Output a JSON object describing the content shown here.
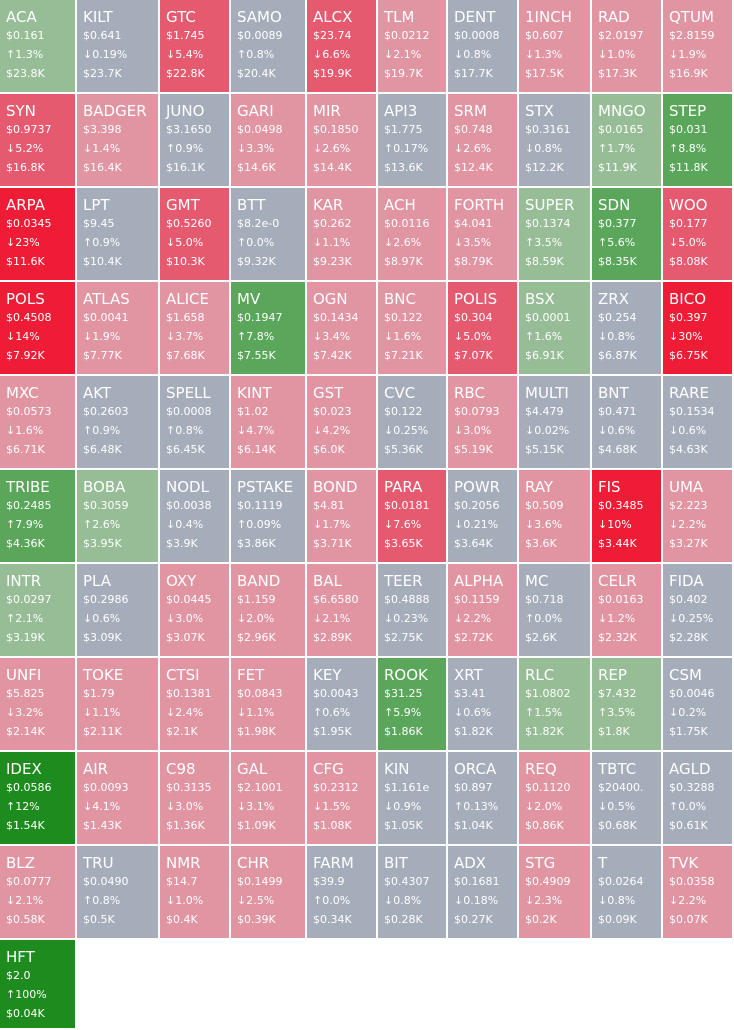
{
  "colors": {
    "up_strong": "#1e8b1e",
    "up_medium": "#5aa65a",
    "up_light": "#96bd96",
    "neutral": "#a5adbb",
    "down_light": "#e194a2",
    "down_medium": "#e65a70",
    "down_strong": "#ef1c36"
  },
  "tiles": [
    {
      "symbol": "ACA",
      "price": "$0.161",
      "change": "↑1.3%",
      "volume": "$23.8K",
      "color": "#96bd96"
    },
    {
      "symbol": "KILT",
      "price": "$0.641",
      "change": "↓0.19%",
      "volume": "$23.7K",
      "color": "#a5adbb"
    },
    {
      "symbol": "GTC",
      "price": "$1.745",
      "change": "↓5.4%",
      "volume": "$22.8K",
      "color": "#e65a70"
    },
    {
      "symbol": "SAMO",
      "price": "$0.0089",
      "change": "↑0.8%",
      "volume": "$20.4K",
      "color": "#a5adbb"
    },
    {
      "symbol": "ALCX",
      "price": "$23.74",
      "change": "↓6.6%",
      "volume": "$19.9K",
      "color": "#e65a70"
    },
    {
      "symbol": "TLM",
      "price": "$0.0212",
      "change": "↓2.1%",
      "volume": "$19.7K",
      "color": "#e194a2"
    },
    {
      "symbol": "DENT",
      "price": "$0.0008",
      "change": "↓0.8%",
      "volume": "$17.7K",
      "color": "#a5adbb"
    },
    {
      "symbol": "1INCH",
      "price": "$0.607",
      "change": "↓1.3%",
      "volume": "$17.5K",
      "color": "#e194a2"
    },
    {
      "symbol": "RAD",
      "price": "$2.0197",
      "change": "↓1.0%",
      "volume": "$17.3K",
      "color": "#e194a2"
    },
    {
      "symbol": "QTUM",
      "price": "$2.8159",
      "change": "↓1.9%",
      "volume": "$16.9K",
      "color": "#e194a2"
    },
    {
      "symbol": "SYN",
      "price": "$0.9737",
      "change": "↓5.2%",
      "volume": "$16.8K",
      "color": "#e65a70"
    },
    {
      "symbol": "BADGER",
      "price": "$3.398",
      "change": "↓1.4%",
      "volume": "$16.4K",
      "color": "#e194a2"
    },
    {
      "symbol": "JUNO",
      "price": "$3.1650",
      "change": "↑0.9%",
      "volume": "$16.1K",
      "color": "#a5adbb"
    },
    {
      "symbol": "GARI",
      "price": "$0.0498",
      "change": "↓3.3%",
      "volume": "$14.6K",
      "color": "#e194a2"
    },
    {
      "symbol": "MIR",
      "price": "$0.1850",
      "change": "↓2.6%",
      "volume": "$14.4K",
      "color": "#e194a2"
    },
    {
      "symbol": "API3",
      "price": "$1.775",
      "change": "↑0.17%",
      "volume": "$13.6K",
      "color": "#a5adbb"
    },
    {
      "symbol": "SRM",
      "price": "$0.748",
      "change": "↓2.6%",
      "volume": "$12.4K",
      "color": "#e194a2"
    },
    {
      "symbol": "STX",
      "price": "$0.3161",
      "change": "↓0.8%",
      "volume": "$12.2K",
      "color": "#a5adbb"
    },
    {
      "symbol": "MNGO",
      "price": "$0.0165",
      "change": "↑1.7%",
      "volume": "$11.9K",
      "color": "#96bd96"
    },
    {
      "symbol": "STEP",
      "price": "$0.031",
      "change": "↑8.8%",
      "volume": "$11.8K",
      "color": "#5aa65a"
    },
    {
      "symbol": "ARPA",
      "price": "$0.0345",
      "change": "↓23%",
      "volume": "$11.6K",
      "color": "#ef1c36"
    },
    {
      "symbol": "LPT",
      "price": "$9.45",
      "change": "↑0.9%",
      "volume": "$10.4K",
      "color": "#a5adbb"
    },
    {
      "symbol": "GMT",
      "price": "$0.5260",
      "change": "↓5.0%",
      "volume": "$10.3K",
      "color": "#e65a70"
    },
    {
      "symbol": "BTT",
      "price": "$8.2e-0",
      "change": "↑0.0%",
      "volume": "$9.32K",
      "color": "#a5adbb"
    },
    {
      "symbol": "KAR",
      "price": "$0.262",
      "change": "↓1.1%",
      "volume": "$9.23K",
      "color": "#e194a2"
    },
    {
      "symbol": "ACH",
      "price": "$0.0116",
      "change": "↓2.6%",
      "volume": "$8.97K",
      "color": "#e194a2"
    },
    {
      "symbol": "FORTH",
      "price": "$4.041",
      "change": "↓3.5%",
      "volume": "$8.79K",
      "color": "#e194a2"
    },
    {
      "symbol": "SUPER",
      "price": "$0.1374",
      "change": "↑3.5%",
      "volume": "$8.59K",
      "color": "#96bd96"
    },
    {
      "symbol": "SDN",
      "price": "$0.377",
      "change": "↑5.6%",
      "volume": "$8.35K",
      "color": "#5aa65a"
    },
    {
      "symbol": "WOO",
      "price": "$0.177",
      "change": "↓5.0%",
      "volume": "$8.08K",
      "color": "#e65a70"
    },
    {
      "symbol": "POLS",
      "price": "$0.4508",
      "change": "↓14%",
      "volume": "$7.92K",
      "color": "#ef1c36"
    },
    {
      "symbol": "ATLAS",
      "price": "$0.0041",
      "change": "↓1.9%",
      "volume": "$7.77K",
      "color": "#e194a2"
    },
    {
      "symbol": "ALICE",
      "price": "$1.658",
      "change": "↓3.7%",
      "volume": "$7.68K",
      "color": "#e194a2"
    },
    {
      "symbol": "MV",
      "price": "$0.1947",
      "change": "↑7.8%",
      "volume": "$7.55K",
      "color": "#5aa65a"
    },
    {
      "symbol": "OGN",
      "price": "$0.1434",
      "change": "↓3.4%",
      "volume": "$7.42K",
      "color": "#e194a2"
    },
    {
      "symbol": "BNC",
      "price": "$0.122",
      "change": "↓1.6%",
      "volume": "$7.21K",
      "color": "#e194a2"
    },
    {
      "symbol": "POLIS",
      "price": "$0.304",
      "change": "↓5.0%",
      "volume": "$7.07K",
      "color": "#e65a70"
    },
    {
      "symbol": "BSX",
      "price": "$0.0001",
      "change": "↑1.6%",
      "volume": "$6.91K",
      "color": "#96bd96"
    },
    {
      "symbol": "ZRX",
      "price": "$0.254",
      "change": "↓0.8%",
      "volume": "$6.87K",
      "color": "#a5adbb"
    },
    {
      "symbol": "BICO",
      "price": "$0.397",
      "change": "↓30%",
      "volume": "$6.75K",
      "color": "#ef1c36"
    },
    {
      "symbol": "MXC",
      "price": "$0.0573",
      "change": "↓1.6%",
      "volume": "$6.71K",
      "color": "#e194a2"
    },
    {
      "symbol": "AKT",
      "price": "$0.2603",
      "change": "↑0.9%",
      "volume": "$6.48K",
      "color": "#a5adbb"
    },
    {
      "symbol": "SPELL",
      "price": "$0.0008",
      "change": "↑0.8%",
      "volume": "$6.45K",
      "color": "#a5adbb"
    },
    {
      "symbol": "KINT",
      "price": "$1.02",
      "change": "↓4.7%",
      "volume": "$6.14K",
      "color": "#e194a2"
    },
    {
      "symbol": "GST",
      "price": "$0.023",
      "change": "↓4.2%",
      "volume": "$6.0K",
      "color": "#e194a2"
    },
    {
      "symbol": "CVC",
      "price": "$0.122",
      "change": "↓0.25%",
      "volume": "$5.36K",
      "color": "#a5adbb"
    },
    {
      "symbol": "RBC",
      "price": "$0.0793",
      "change": "↓3.0%",
      "volume": "$5.19K",
      "color": "#e194a2"
    },
    {
      "symbol": "MULTI",
      "price": "$4.479",
      "change": "↓0.02%",
      "volume": "$5.15K",
      "color": "#a5adbb"
    },
    {
      "symbol": "BNT",
      "price": "$0.471",
      "change": "↓0.6%",
      "volume": "$4.68K",
      "color": "#a5adbb"
    },
    {
      "symbol": "RARE",
      "price": "$0.1534",
      "change": "↓0.6%",
      "volume": "$4.63K",
      "color": "#a5adbb"
    },
    {
      "symbol": "TRIBE",
      "price": "$0.2485",
      "change": "↑7.9%",
      "volume": "$4.36K",
      "color": "#5aa65a"
    },
    {
      "symbol": "BOBA",
      "price": "$0.3059",
      "change": "↑2.6%",
      "volume": "$3.95K",
      "color": "#96bd96"
    },
    {
      "symbol": "NODL",
      "price": "$0.0038",
      "change": "↓0.4%",
      "volume": "$3.9K",
      "color": "#a5adbb"
    },
    {
      "symbol": "PSTAKE",
      "price": "$0.1119",
      "change": "↑0.09%",
      "volume": "$3.86K",
      "color": "#a5adbb"
    },
    {
      "symbol": "BOND",
      "price": "$4.81",
      "change": "↓1.7%",
      "volume": "$3.71K",
      "color": "#e194a2"
    },
    {
      "symbol": "PARA",
      "price": "$0.0181",
      "change": "↓7.6%",
      "volume": "$3.65K",
      "color": "#e65a70"
    },
    {
      "symbol": "POWR",
      "price": "$0.2056",
      "change": "↓0.21%",
      "volume": "$3.64K",
      "color": "#a5adbb"
    },
    {
      "symbol": "RAY",
      "price": "$0.509",
      "change": "↓3.6%",
      "volume": "$3.6K",
      "color": "#e194a2"
    },
    {
      "symbol": "FIS",
      "price": "$0.3485",
      "change": "↓10%",
      "volume": "$3.44K",
      "color": "#ef1c36"
    },
    {
      "symbol": "UMA",
      "price": "$2.223",
      "change": "↓2.2%",
      "volume": "$3.27K",
      "color": "#e194a2"
    },
    {
      "symbol": "INTR",
      "price": "$0.0297",
      "change": "↑2.1%",
      "volume": "$3.19K",
      "color": "#96bd96"
    },
    {
      "symbol": "PLA",
      "price": "$0.2986",
      "change": "↓0.6%",
      "volume": "$3.09K",
      "color": "#a5adbb"
    },
    {
      "symbol": "OXY",
      "price": "$0.0445",
      "change": "↓3.0%",
      "volume": "$3.07K",
      "color": "#e194a2"
    },
    {
      "symbol": "BAND",
      "price": "$1.159",
      "change": "↓2.0%",
      "volume": "$2.96K",
      "color": "#e194a2"
    },
    {
      "symbol": "BAL",
      "price": "$6.6580",
      "change": "↓2.1%",
      "volume": "$2.89K",
      "color": "#e194a2"
    },
    {
      "symbol": "TEER",
      "price": "$0.4888",
      "change": "↓0.23%",
      "volume": "$2.75K",
      "color": "#a5adbb"
    },
    {
      "symbol": "ALPHA",
      "price": "$0.1159",
      "change": "↓2.2%",
      "volume": "$2.72K",
      "color": "#e194a2"
    },
    {
      "symbol": "MC",
      "price": "$0.718",
      "change": "↑0.0%",
      "volume": "$2.6K",
      "color": "#a5adbb"
    },
    {
      "symbol": "CELR",
      "price": "$0.0163",
      "change": "↓1.2%",
      "volume": "$2.32K",
      "color": "#e194a2"
    },
    {
      "symbol": "FIDA",
      "price": "$0.402",
      "change": "↓0.25%",
      "volume": "$2.28K",
      "color": "#a5adbb"
    },
    {
      "symbol": "UNFI",
      "price": "$5.825",
      "change": "↓3.2%",
      "volume": "$2.14K",
      "color": "#e194a2"
    },
    {
      "symbol": "TOKE",
      "price": "$1.79",
      "change": "↓1.1%",
      "volume": "$2.11K",
      "color": "#e194a2"
    },
    {
      "symbol": "CTSI",
      "price": "$0.1381",
      "change": "↓2.4%",
      "volume": "$2.1K",
      "color": "#e194a2"
    },
    {
      "symbol": "FET",
      "price": "$0.0843",
      "change": "↓1.1%",
      "volume": "$1.98K",
      "color": "#e194a2"
    },
    {
      "symbol": "KEY",
      "price": "$0.0043",
      "change": "↑0.6%",
      "volume": "$1.95K",
      "color": "#a5adbb"
    },
    {
      "symbol": "ROOK",
      "price": "$31.25",
      "change": "↑5.9%",
      "volume": "$1.86K",
      "color": "#5aa65a"
    },
    {
      "symbol": "XRT",
      "price": "$3.41",
      "change": "↓0.6%",
      "volume": "$1.82K",
      "color": "#a5adbb"
    },
    {
      "symbol": "RLC",
      "price": "$1.0802",
      "change": "↑1.5%",
      "volume": "$1.82K",
      "color": "#96bd96"
    },
    {
      "symbol": "REP",
      "price": "$7.432",
      "change": "↑3.5%",
      "volume": "$1.8K",
      "color": "#96bd96"
    },
    {
      "symbol": "CSM",
      "price": "$0.0046",
      "change": "↓0.2%",
      "volume": "$1.75K",
      "color": "#a5adbb"
    },
    {
      "symbol": "IDEX",
      "price": "$0.0586",
      "change": "↑12%",
      "volume": "$1.54K",
      "color": "#1e8b1e"
    },
    {
      "symbol": "AIR",
      "price": "$0.0093",
      "change": "↓4.1%",
      "volume": "$1.43K",
      "color": "#e194a2"
    },
    {
      "symbol": "C98",
      "price": "$0.3135",
      "change": "↓3.0%",
      "volume": "$1.36K",
      "color": "#e194a2"
    },
    {
      "symbol": "GAL",
      "price": "$2.1001",
      "change": "↓3.1%",
      "volume": "$1.09K",
      "color": "#e194a2"
    },
    {
      "symbol": "CFG",
      "price": "$0.2312",
      "change": "↓1.5%",
      "volume": "$1.08K",
      "color": "#e194a2"
    },
    {
      "symbol": "KIN",
      "price": "$1.161e",
      "change": "↓0.9%",
      "volume": "$1.05K",
      "color": "#a5adbb"
    },
    {
      "symbol": "ORCA",
      "price": "$0.897",
      "change": "↑0.13%",
      "volume": "$1.04K",
      "color": "#a5adbb"
    },
    {
      "symbol": "REQ",
      "price": "$0.1120",
      "change": "↓2.0%",
      "volume": "$0.86K",
      "color": "#e194a2"
    },
    {
      "symbol": "TBTC",
      "price": "$20400.",
      "change": "↓0.5%",
      "volume": "$0.68K",
      "color": "#a5adbb"
    },
    {
      "symbol": "AGLD",
      "price": "$0.3288",
      "change": "↑0.0%",
      "volume": "$0.61K",
      "color": "#a5adbb"
    },
    {
      "symbol": "BLZ",
      "price": "$0.0777",
      "change": "↓2.1%",
      "volume": "$0.58K",
      "color": "#e194a2"
    },
    {
      "symbol": "TRU",
      "price": "$0.0490",
      "change": "↑0.8%",
      "volume": "$0.5K",
      "color": "#a5adbb"
    },
    {
      "symbol": "NMR",
      "price": "$14.7",
      "change": "↓1.0%",
      "volume": "$0.4K",
      "color": "#e194a2"
    },
    {
      "symbol": "CHR",
      "price": "$0.1499",
      "change": "↓2.5%",
      "volume": "$0.39K",
      "color": "#e194a2"
    },
    {
      "symbol": "FARM",
      "price": "$39.9",
      "change": "↑0.0%",
      "volume": "$0.34K",
      "color": "#a5adbb"
    },
    {
      "symbol": "BIT",
      "price": "$0.4307",
      "change": "↓0.8%",
      "volume": "$0.28K",
      "color": "#a5adbb"
    },
    {
      "symbol": "ADX",
      "price": "$0.1681",
      "change": "↓0.18%",
      "volume": "$0.27K",
      "color": "#a5adbb"
    },
    {
      "symbol": "STG",
      "price": "$0.4909",
      "change": "↓2.3%",
      "volume": "$0.2K",
      "color": "#e194a2"
    },
    {
      "symbol": "T",
      "price": "$0.0264",
      "change": "↓0.8%",
      "volume": "$0.09K",
      "color": "#a5adbb"
    },
    {
      "symbol": "TVK",
      "price": "$0.0358",
      "change": "↓2.2%",
      "volume": "$0.07K",
      "color": "#e194a2"
    },
    {
      "symbol": "HFT",
      "price": "$2.0",
      "change": "↑100%",
      "volume": "$0.04K",
      "color": "#1e8b1e"
    }
  ]
}
